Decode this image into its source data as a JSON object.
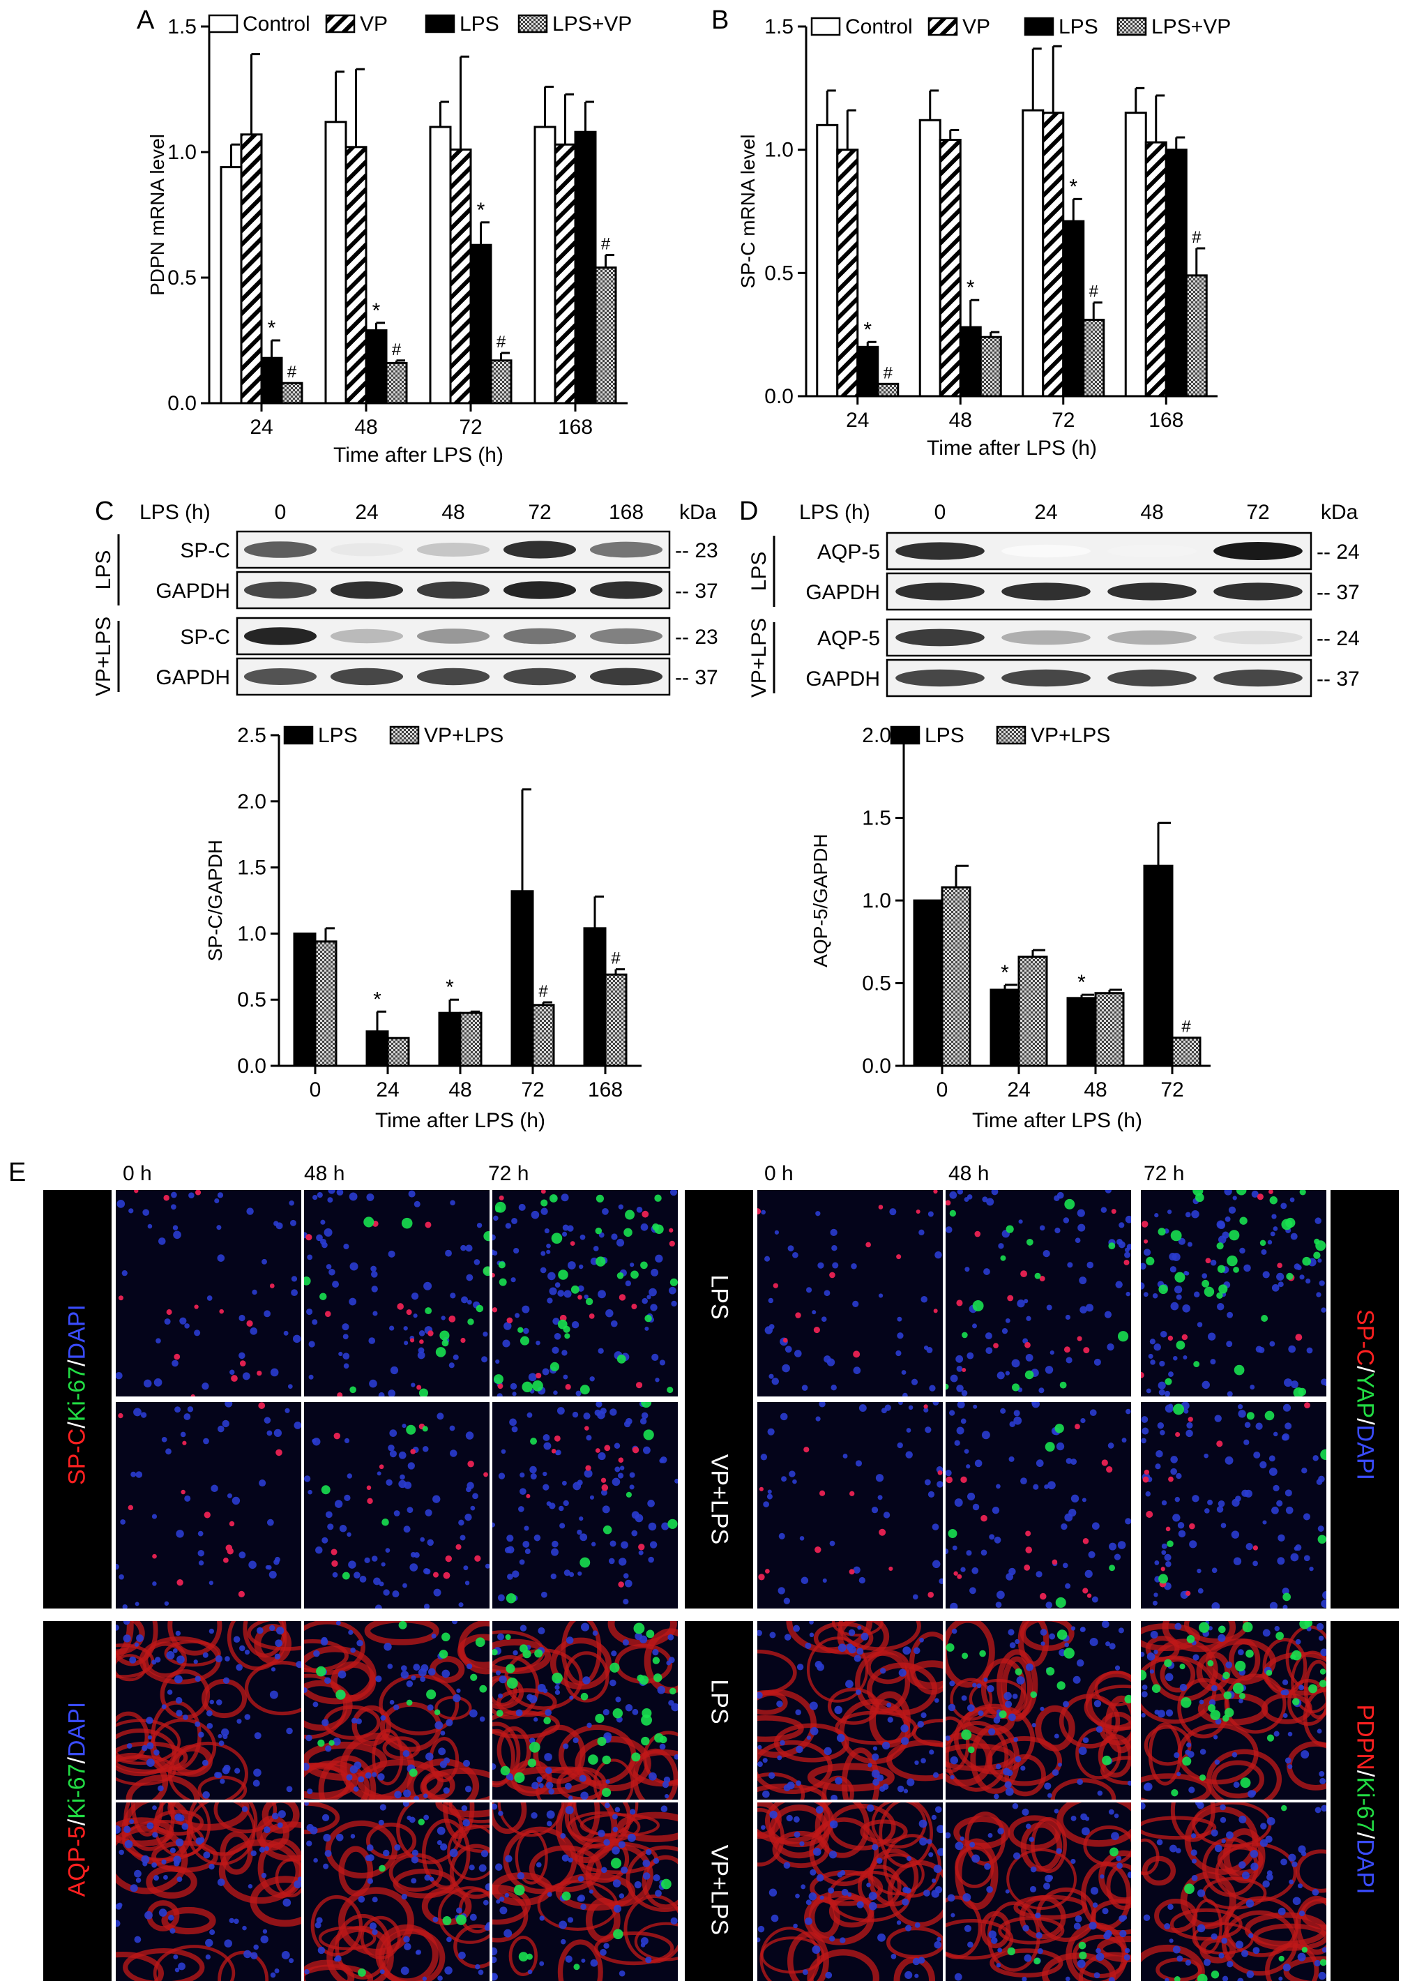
{
  "figure": {
    "panel_letters": [
      "A",
      "B",
      "C",
      "D",
      "E"
    ]
  },
  "colors": {
    "LPS": "#000000",
    "control": "#ffffff",
    "axis": "#000000",
    "dapi": "#1a2aa8",
    "red": "#e01010",
    "green": "#10d040"
  },
  "chart_data": [
    {
      "id": "A",
      "type": "bar",
      "ylabel": "PDPN mRNA level",
      "xlabel": "Time after LPS (h)",
      "ylim": [
        0,
        1.5
      ],
      "yticks": [
        "0.0",
        "0.5",
        "1.0",
        "1.5"
      ],
      "categories": [
        "24",
        "48",
        "72",
        "168"
      ],
      "legend": "top",
      "series": [
        {
          "name": "Control",
          "fill": "white",
          "values": [
            0.94,
            1.12,
            1.1,
            1.1
          ],
          "errors": [
            0.09,
            0.2,
            0.1,
            0.16
          ],
          "marks": [
            "",
            "",
            "",
            ""
          ]
        },
        {
          "name": "VP",
          "fill": "hatch",
          "values": [
            1.07,
            1.02,
            1.01,
            1.03
          ],
          "errors": [
            0.32,
            0.31,
            0.37,
            0.2
          ],
          "marks": [
            "",
            "",
            "",
            ""
          ]
        },
        {
          "name": "LPS",
          "fill": "black",
          "values": [
            0.18,
            0.29,
            0.63,
            1.08
          ],
          "errors": [
            0.07,
            0.03,
            0.09,
            0.12
          ],
          "marks": [
            "*",
            "*",
            "*",
            ""
          ]
        },
        {
          "name": "LPS+VP",
          "fill": "dots",
          "values": [
            0.08,
            0.16,
            0.17,
            0.54
          ],
          "errors": [
            0.0,
            0.01,
            0.03,
            0.05
          ],
          "marks": [
            "#",
            "#",
            "#",
            "#"
          ]
        }
      ]
    },
    {
      "id": "B",
      "type": "bar",
      "ylabel": "SP-C mRNA level",
      "xlabel": "Time after LPS (h)",
      "ylim": [
        0,
        1.5
      ],
      "yticks": [
        "0.0",
        "0.5",
        "1.0",
        "1.5"
      ],
      "categories": [
        "24",
        "48",
        "72",
        "168"
      ],
      "legend": "top",
      "series": [
        {
          "name": "Control",
          "fill": "white",
          "values": [
            1.1,
            1.12,
            1.16,
            1.15
          ],
          "errors": [
            0.14,
            0.12,
            0.25,
            0.1
          ],
          "marks": [
            "",
            "",
            "",
            ""
          ]
        },
        {
          "name": "VP",
          "fill": "hatch",
          "values": [
            1.0,
            1.04,
            1.15,
            1.03
          ],
          "errors": [
            0.16,
            0.04,
            0.27,
            0.19
          ],
          "marks": [
            "",
            "",
            "",
            ""
          ]
        },
        {
          "name": "LPS",
          "fill": "black",
          "values": [
            0.2,
            0.28,
            0.71,
            1.0
          ],
          "errors": [
            0.02,
            0.11,
            0.09,
            0.05
          ],
          "marks": [
            "*",
            "*",
            "*",
            ""
          ]
        },
        {
          "name": "LPS+VP",
          "fill": "dots",
          "values": [
            0.05,
            0.24,
            0.31,
            0.49
          ],
          "errors": [
            0.0,
            0.02,
            0.07,
            0.11
          ],
          "marks": [
            "#",
            "",
            "#",
            "#"
          ]
        }
      ]
    },
    {
      "id": "C",
      "type": "bar",
      "ylabel": "SP-C/GAPDH",
      "xlabel": "Time after LPS (h)",
      "ylim": [
        0,
        2.5
      ],
      "yticks": [
        "0.0",
        "0.5",
        "1.0",
        "1.5",
        "2.0",
        "2.5"
      ],
      "categories": [
        "0",
        "24",
        "48",
        "72",
        "168"
      ],
      "legend": "top",
      "series": [
        {
          "name": "LPS",
          "fill": "black",
          "values": [
            1.0,
            0.26,
            0.4,
            1.32,
            1.04
          ],
          "errors": [
            0.0,
            0.15,
            0.1,
            0.77,
            0.24
          ],
          "marks": [
            "",
            "*",
            "*",
            "",
            ""
          ]
        },
        {
          "name": "VP+LPS",
          "fill": "dots",
          "values": [
            0.94,
            0.21,
            0.4,
            0.46,
            0.69
          ],
          "errors": [
            0.1,
            0.0,
            0.01,
            0.02,
            0.04
          ],
          "marks": [
            "",
            "",
            "",
            "#",
            "#"
          ]
        }
      ]
    },
    {
      "id": "D",
      "type": "bar",
      "ylabel": "AQP-5/GAPDH",
      "xlabel": "Time after LPS (h)",
      "ylim": [
        0,
        2.0
      ],
      "yticks": [
        "0.0",
        "0.5",
        "1.0",
        "1.5",
        "2.0"
      ],
      "categories": [
        "0",
        "24",
        "48",
        "72"
      ],
      "legend": "top",
      "series": [
        {
          "name": "LPS",
          "fill": "black",
          "values": [
            1.0,
            0.46,
            0.41,
            1.21
          ],
          "errors": [
            0.0,
            0.03,
            0.02,
            0.26
          ],
          "marks": [
            "",
            "*",
            "*",
            ""
          ]
        },
        {
          "name": "VP+LPS",
          "fill": "dots",
          "values": [
            1.08,
            0.66,
            0.44,
            0.17
          ],
          "errors": [
            0.13,
            0.04,
            0.02,
            0.0
          ],
          "marks": [
            "",
            "",
            "",
            "#"
          ]
        }
      ]
    }
  ],
  "blots": {
    "C": {
      "header_label": "LPS (h)",
      "lanes": [
        "0",
        "24",
        "48",
        "72",
        "168"
      ],
      "unit": "kDa",
      "group1": "LPS",
      "group2": "VP+LPS",
      "rows": [
        {
          "label": "SP-C",
          "kda": "23",
          "intensity": [
            0.7,
            0.1,
            0.25,
            0.9,
            0.6
          ]
        },
        {
          "label": "GAPDH",
          "kda": "37",
          "intensity": [
            0.8,
            0.9,
            0.85,
            0.95,
            0.9
          ]
        },
        {
          "label": "SP-C",
          "kda": "23",
          "intensity": [
            0.95,
            0.3,
            0.45,
            0.6,
            0.55
          ]
        },
        {
          "label": "GAPDH",
          "kda": "37",
          "intensity": [
            0.75,
            0.8,
            0.8,
            0.8,
            0.85
          ]
        }
      ]
    },
    "D": {
      "header_label": "LPS (h)",
      "lanes": [
        "0",
        "24",
        "48",
        "72"
      ],
      "unit": "kDa",
      "group1": "LPS",
      "group2": "VP+LPS",
      "rows": [
        {
          "label": "AQP-5",
          "kda": "24",
          "intensity": [
            0.9,
            0.02,
            0.05,
            1.0
          ]
        },
        {
          "label": "GAPDH",
          "kda": "37",
          "intensity": [
            0.9,
            0.9,
            0.9,
            0.9
          ]
        },
        {
          "label": "AQP-5",
          "kda": "24",
          "intensity": [
            0.85,
            0.35,
            0.35,
            0.15
          ]
        },
        {
          "label": "GAPDH",
          "kda": "37",
          "intensity": [
            0.8,
            0.8,
            0.8,
            0.8
          ]
        }
      ]
    }
  },
  "panel_e": {
    "time_labels_left": [
      "0 h",
      "48 h",
      "72 h"
    ],
    "time_labels_right": [
      "0 h",
      "48 h",
      "72 h"
    ],
    "condition_lps": "LPS",
    "condition_vplps": "VP+LPS",
    "stains": {
      "top_left": [
        "SP-C",
        "/",
        "Ki-67",
        "/",
        "DAPI"
      ],
      "top_right": [
        "SP-C",
        "/",
        "YAP",
        "/",
        "DAPI"
      ],
      "bottom_left": [
        "AQP-5",
        "/",
        "Ki-67",
        "/",
        "DAPI"
      ],
      "bottom_right": [
        "PDPN",
        "/",
        "Ki-67",
        "/",
        "DAPI"
      ]
    }
  }
}
